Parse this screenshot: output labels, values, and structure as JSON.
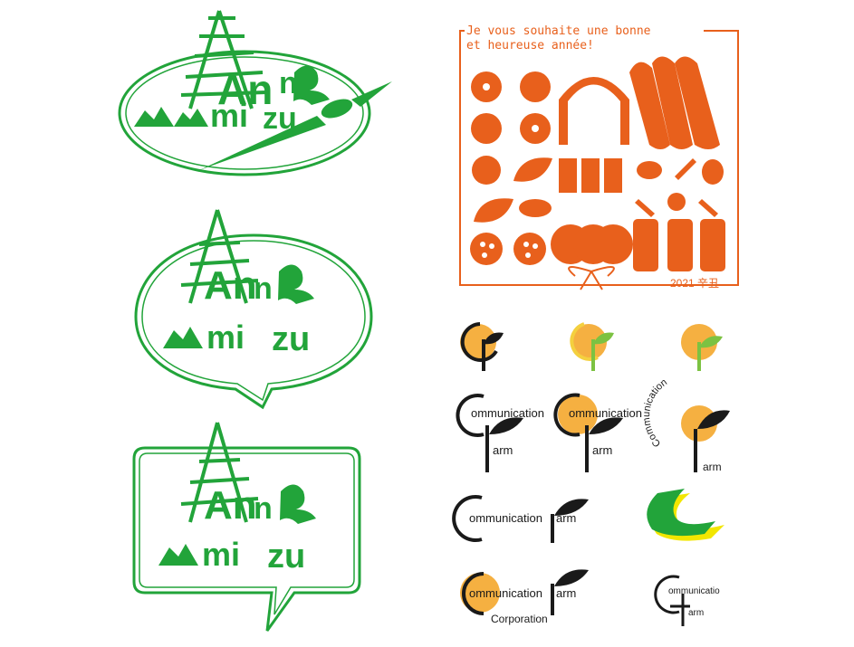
{
  "colors": {
    "green": "#22a43a",
    "orange": "#e8601c",
    "sun": "#f5b041",
    "sun_yellow": "#f4d03f",
    "leaf_green": "#7cc242",
    "dark": "#1a1a1a",
    "lime": "#f2e600"
  },
  "anmizu": {
    "logos": [
      {
        "top": "An",
        "top_n": "n",
        "bottom": "mi",
        "bottom_zu": "zu",
        "frame": "ellipse"
      },
      {
        "top": "An",
        "top_n": "n",
        "bottom": "mi",
        "bottom_zu": "zu",
        "frame": "speech-bubble-oval"
      },
      {
        "top": "An",
        "top_n": "n",
        "bottom": "mi",
        "bottom_zu": "zu",
        "frame": "speech-bubble-rect"
      }
    ]
  },
  "card": {
    "greeting_line1": "Je vous souhaite une bonne",
    "greeting_line2": "et heureuse année!",
    "year_label": "2021 辛丑"
  },
  "cf": {
    "communication": "ommunication",
    "farm": "arm",
    "corporation": "Corporation",
    "arc_text": "Communication",
    "small_communication": "ommunicatio"
  }
}
